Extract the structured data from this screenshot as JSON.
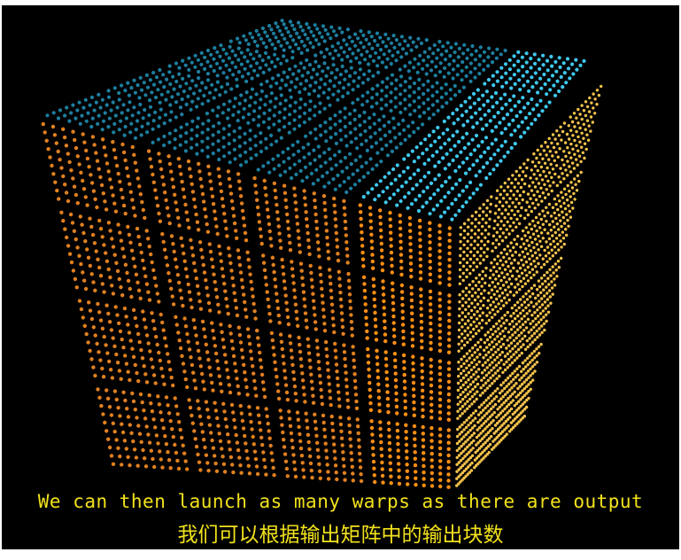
{
  "video": {
    "subtitle_en": "We can then launch as many warps as there are output",
    "subtitle_zh": "我们可以根据输出矩阵中的输出块数"
  },
  "cube": {
    "grid": [
      4,
      4
    ],
    "highlight_tile": {
      "face": "front",
      "column": 4,
      "row": 1
    },
    "colors": {
      "background": "#000000",
      "top_dim": "#1d7fa0",
      "top_bright": "#3ec8ef",
      "front_dim": "#e0801f",
      "front_bright": "#ff8f14",
      "right": "#f3c24b",
      "subtitle": "#f2e21c"
    }
  }
}
